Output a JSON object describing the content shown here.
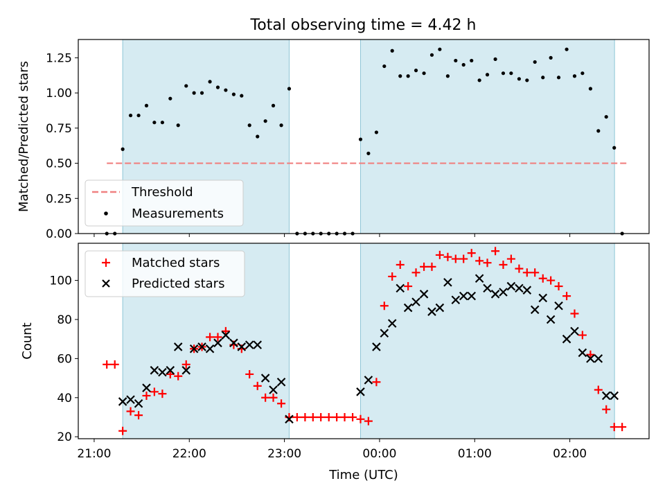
{
  "title": "Total observing time = 4.42 h",
  "chart_data": [
    {
      "type": "scatter",
      "panel": "top",
      "title": "Total observing time = 4.42 h",
      "xlabel": "",
      "ylabel": "Matched/Predicted stars",
      "xlim": [
        -0.167,
        5.833
      ],
      "ylim": [
        0,
        1.38
      ],
      "yticks": [
        0,
        0.25,
        0.5,
        0.75,
        1.0,
        1.25
      ],
      "ytick_labels": [
        "0.00",
        "0.25",
        "0.50",
        "0.75",
        "1.00",
        "1.25"
      ],
      "grid": false,
      "legend": "lower-left",
      "shaded_intervals": [
        [
          0.3,
          2.05
        ],
        [
          2.8,
          5.47
        ]
      ],
      "threshold": {
        "name": "Threshold",
        "y": 0.5,
        "x": [
          0.133,
          5.6
        ],
        "color": "#f08080"
      },
      "series": [
        {
          "name": "Measurements",
          "color": "#000000",
          "x": [
            0.133,
            0.217,
            0.3,
            0.383,
            0.467,
            0.55,
            0.633,
            0.717,
            0.8,
            0.883,
            0.967,
            1.05,
            1.133,
            1.217,
            1.3,
            1.383,
            1.467,
            1.55,
            1.633,
            1.717,
            1.8,
            1.883,
            1.967,
            2.05,
            2.133,
            2.217,
            2.3,
            2.383,
            2.467,
            2.55,
            2.633,
            2.717,
            2.8,
            2.883,
            2.967,
            3.05,
            3.133,
            3.217,
            3.3,
            3.383,
            3.467,
            3.55,
            3.633,
            3.717,
            3.8,
            3.883,
            3.967,
            4.05,
            4.133,
            4.217,
            4.3,
            4.383,
            4.467,
            4.55,
            4.633,
            4.717,
            4.8,
            4.883,
            4.967,
            5.05,
            5.133,
            5.217,
            5.3,
            5.383,
            5.467,
            5.55
          ],
          "y": [
            0,
            0,
            0.6,
            0.84,
            0.84,
            0.91,
            0.79,
            0.79,
            0.96,
            0.77,
            1.05,
            1.0,
            1.0,
            1.08,
            1.04,
            1.02,
            0.99,
            0.98,
            0.77,
            0.69,
            0.8,
            0.91,
            0.77,
            1.03,
            0,
            0,
            0,
            0,
            0,
            0,
            0,
            0,
            0.67,
            0.57,
            0.72,
            1.19,
            1.3,
            1.12,
            1.12,
            1.16,
            1.14,
            1.27,
            1.31,
            1.12,
            1.23,
            1.2,
            1.23,
            1.09,
            1.13,
            1.24,
            1.14,
            1.14,
            1.1,
            1.09,
            1.22,
            1.11,
            1.25,
            1.11,
            1.31,
            1.12,
            1.14,
            1.03,
            0.73,
            0.83,
            0.61,
            0
          ]
        }
      ]
    },
    {
      "type": "scatter",
      "panel": "bottom",
      "xlabel": "Time (UTC)",
      "ylabel": "Count",
      "xlim": [
        -0.167,
        5.833
      ],
      "ylim": [
        19,
        119
      ],
      "xticks": [
        0,
        1,
        2,
        3,
        4,
        5
      ],
      "xtick_labels": [
        "21:00",
        "22:00",
        "23:00",
        "00:00",
        "01:00",
        "02:00"
      ],
      "yticks": [
        20,
        40,
        60,
        80,
        100
      ],
      "ytick_labels": [
        "20",
        "40",
        "60",
        "80",
        "100"
      ],
      "grid": false,
      "legend": "upper-left",
      "shaded_intervals": [
        [
          0.3,
          2.05
        ],
        [
          2.8,
          5.47
        ]
      ],
      "series": [
        {
          "name": "Matched stars",
          "marker": "+",
          "color": "#ff0000",
          "x": [
            0.133,
            0.217,
            0.3,
            0.383,
            0.467,
            0.55,
            0.633,
            0.717,
            0.8,
            0.883,
            0.967,
            1.05,
            1.133,
            1.217,
            1.3,
            1.383,
            1.467,
            1.55,
            1.633,
            1.717,
            1.8,
            1.883,
            1.967,
            2.05,
            2.133,
            2.217,
            2.3,
            2.383,
            2.467,
            2.55,
            2.633,
            2.717,
            2.8,
            2.883,
            2.967,
            3.05,
            3.133,
            3.217,
            3.3,
            3.383,
            3.467,
            3.55,
            3.633,
            3.717,
            3.8,
            3.883,
            3.967,
            4.05,
            4.133,
            4.217,
            4.3,
            4.383,
            4.467,
            4.55,
            4.633,
            4.717,
            4.8,
            4.883,
            4.967,
            5.05,
            5.133,
            5.217,
            5.3,
            5.383,
            5.467,
            5.55
          ],
          "y": [
            57,
            57,
            23,
            33,
            31,
            41,
            43,
            42,
            52,
            51,
            57,
            65,
            66,
            71,
            71,
            74,
            67,
            65,
            52,
            46,
            40,
            40,
            37,
            30,
            30,
            30,
            30,
            30,
            30,
            30,
            30,
            30,
            29,
            28,
            48,
            87,
            102,
            108,
            97,
            104,
            107,
            107,
            113,
            112,
            111,
            111,
            114,
            110,
            109,
            115,
            108,
            111,
            106,
            104,
            104,
            101,
            100,
            97,
            92,
            83,
            72,
            62,
            44,
            34,
            25,
            25
          ]
        },
        {
          "name": "Predicted stars",
          "marker": "x",
          "color": "#000000",
          "x": [
            0.3,
            0.383,
            0.467,
            0.55,
            0.633,
            0.717,
            0.8,
            0.883,
            0.967,
            1.05,
            1.133,
            1.217,
            1.3,
            1.383,
            1.467,
            1.55,
            1.633,
            1.717,
            1.8,
            1.883,
            1.967,
            2.05,
            2.8,
            2.883,
            2.967,
            3.05,
            3.133,
            3.217,
            3.3,
            3.383,
            3.467,
            3.55,
            3.633,
            3.717,
            3.8,
            3.883,
            3.967,
            4.05,
            4.133,
            4.217,
            4.3,
            4.383,
            4.467,
            4.55,
            4.633,
            4.717,
            4.8,
            4.883,
            4.967,
            5.05,
            5.133,
            5.217,
            5.3,
            5.383,
            5.467
          ],
          "y": [
            38,
            39,
            37,
            45,
            54,
            53,
            54,
            66,
            54,
            65,
            66,
            65,
            68,
            72,
            68,
            66,
            67,
            67,
            50,
            44,
            48,
            29,
            43,
            49,
            66,
            73,
            78,
            96,
            86,
            89,
            93,
            84,
            86,
            99,
            90,
            92,
            92,
            101,
            96,
            93,
            94,
            97,
            96,
            95,
            85,
            91,
            80,
            87,
            70,
            74,
            63,
            60,
            60,
            41,
            41
          ]
        }
      ]
    }
  ]
}
